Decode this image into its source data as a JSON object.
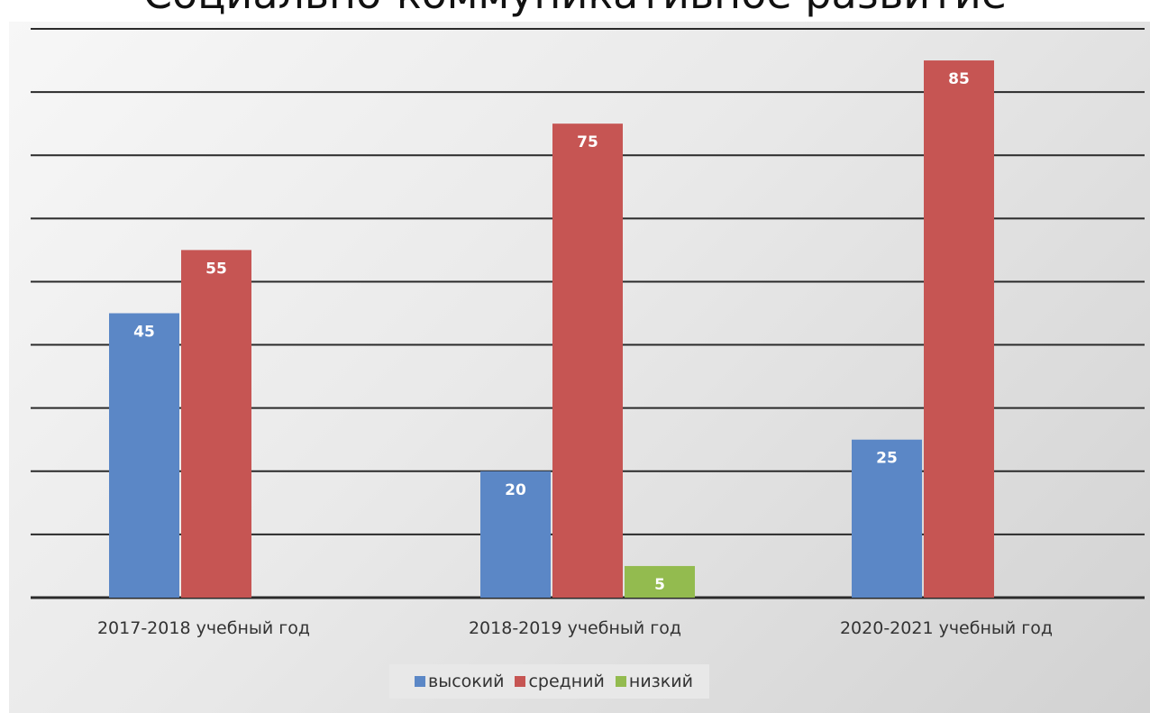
{
  "chart_data": {
    "type": "bar",
    "title": "Социально-коммуникативное развитие",
    "categories": [
      "2017-2018 учебный год",
      "2018-2019 учебный год",
      "2020-2021 учебный год"
    ],
    "series": [
      {
        "name": "высокий",
        "values": [
          45,
          20,
          25
        ],
        "color": "#5b87c6"
      },
      {
        "name": "средний",
        "values": [
          55,
          75,
          85
        ],
        "color": "#c65553"
      },
      {
        "name": "низкий",
        "values": [
          0,
          5,
          0
        ],
        "color": "#93bb4f"
      }
    ],
    "data_labels": [
      [
        "45",
        "20",
        "25"
      ],
      [
        "55",
        "75",
        "85"
      ],
      [
        "",
        "5",
        ""
      ]
    ],
    "ylim": [
      0,
      90
    ],
    "grid": true,
    "legend_position": "bottom"
  }
}
